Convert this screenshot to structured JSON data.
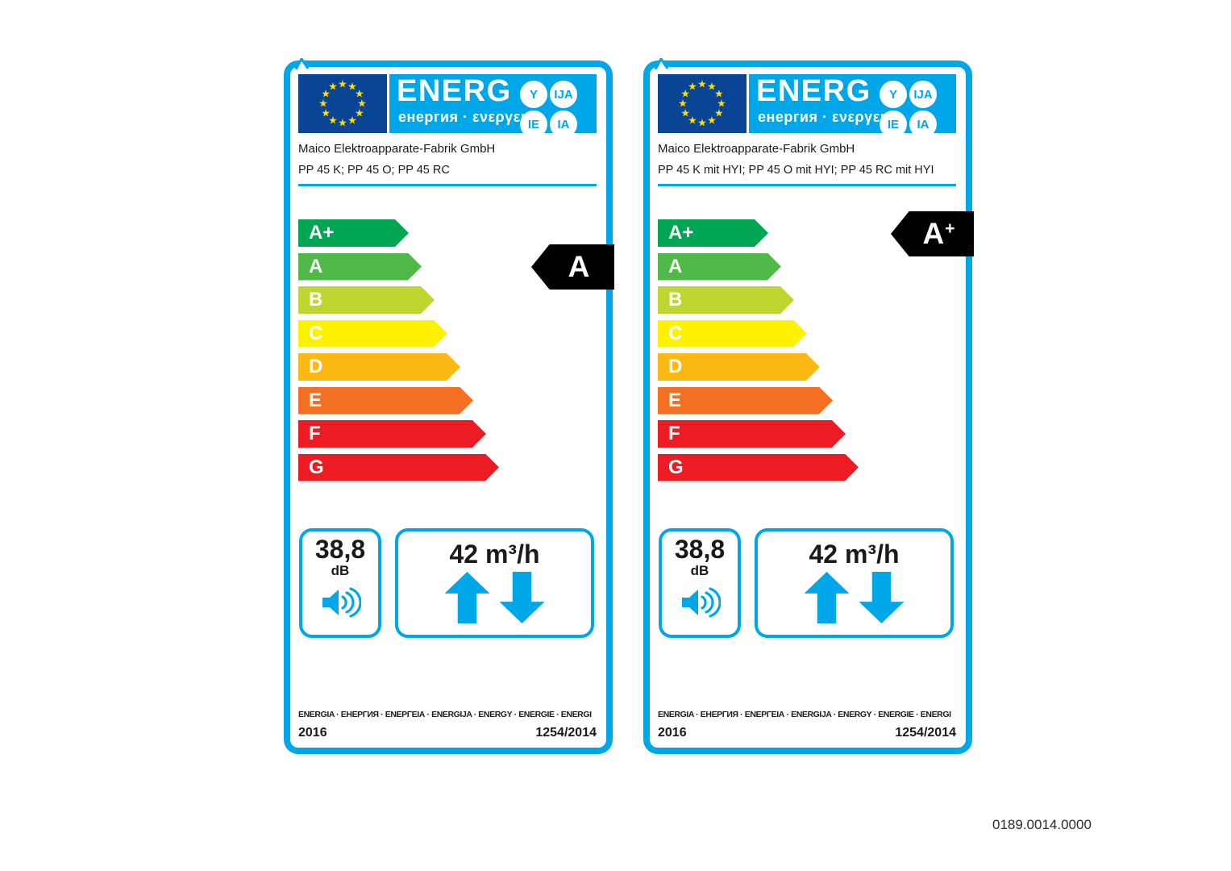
{
  "page": {
    "background": "#ffffff",
    "document_code": "0189.0014.0000"
  },
  "brand": {
    "logo_main": "ENERG",
    "logo_sub": "енергия · ενεργεια",
    "endings": [
      "Y",
      "IJA",
      "IE",
      "IA"
    ]
  },
  "colors": {
    "accent_blue": "#00a7e8",
    "eu_flag_blue": "#0a4495",
    "star_yellow": "#ffdd00",
    "rating_arrow_black": "#000000",
    "text_black": "#1a1a1a"
  },
  "scale": [
    {
      "grade": "A+",
      "color": "#00a651"
    },
    {
      "grade": "A",
      "color": "#50b848"
    },
    {
      "grade": "B",
      "color": "#bed62f"
    },
    {
      "grade": "C",
      "color": "#fff200"
    },
    {
      "grade": "D",
      "color": "#fdb913"
    },
    {
      "grade": "E",
      "color": "#f36f21"
    },
    {
      "grade": "F",
      "color": "#ed1c24"
    },
    {
      "grade": "G",
      "color": "#ed1c24"
    }
  ],
  "labels": [
    {
      "supplier": "Maico Elektroapparate-Fabrik GmbH",
      "model": "PP 45 K; PP 45 O; PP 45 RC",
      "rating": {
        "letter": "A",
        "plus": ""
      },
      "noise": {
        "value": "38,8",
        "unit": "dB"
      },
      "airflow": "42 m³/h",
      "languages_line": "ENERGIA · ЕНЕРГИЯ · ΕΝΕΡΓΕΙΑ · ENERGIJA · ENERGY · ENERGIE · ENERGI",
      "year": "2016",
      "regulation": "1254/2014"
    },
    {
      "supplier": "Maico Elektroapparate-Fabrik GmbH",
      "model": "PP 45 K mit HYI; PP 45 O mit HYI; PP 45 RC mit HYI",
      "rating": {
        "letter": "A",
        "plus": "+"
      },
      "noise": {
        "value": "38,8",
        "unit": "dB"
      },
      "airflow": "42 m³/h",
      "languages_line": "ENERGIA · ЕНЕРГИЯ · ΕΝΕΡΓΕΙΑ · ENERGIJA · ENERGY · ENERGIE · ENERGI",
      "year": "2016",
      "regulation": "1254/2014"
    }
  ]
}
